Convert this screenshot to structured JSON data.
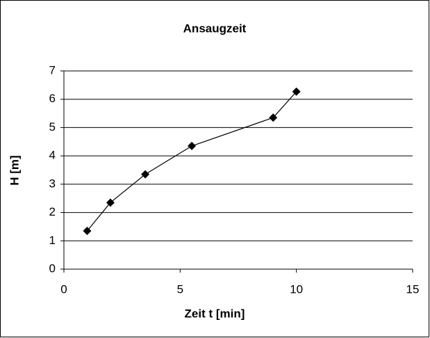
{
  "chart_data": {
    "type": "line",
    "title": "Ansaugzeit",
    "xlabel": "Zeit t [min]",
    "ylabel": "H [m]",
    "x": [
      1,
      2,
      3.5,
      5.5,
      9,
      10
    ],
    "series": [
      {
        "color": "#000000",
        "values": [
          1.35,
          2.35,
          3.35,
          4.35,
          5.35,
          6.27
        ]
      }
    ],
    "xlim": [
      0,
      15
    ],
    "xticks": [
      0,
      5,
      10,
      15
    ],
    "ylim": [
      0,
      7
    ],
    "yticks": [
      0,
      1,
      2,
      3,
      4,
      5,
      6,
      7
    ],
    "grid": true
  }
}
